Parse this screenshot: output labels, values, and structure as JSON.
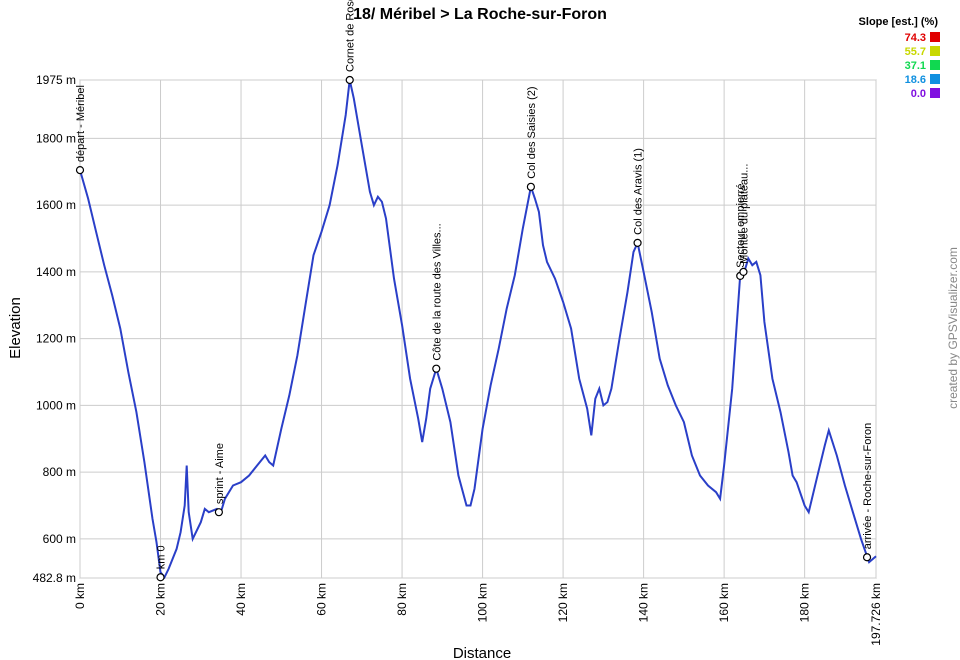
{
  "chart_data": {
    "type": "line",
    "title": "18/ Méribel > La Roche-sur-Foron",
    "xlabel": "Distance",
    "ylabel": "Elevation",
    "credit": "created by GPSVisualizer.com",
    "xlim": [
      0,
      197.726
    ],
    "ylim": [
      482.8,
      1975
    ],
    "xticks": [
      {
        "value": 0,
        "label": "0 km"
      },
      {
        "value": 20,
        "label": "20 km"
      },
      {
        "value": 40,
        "label": "40 km"
      },
      {
        "value": 60,
        "label": "60 km"
      },
      {
        "value": 80,
        "label": "80 km"
      },
      {
        "value": 100,
        "label": "100 km"
      },
      {
        "value": 120,
        "label": "120 km"
      },
      {
        "value": 140,
        "label": "140 km"
      },
      {
        "value": 160,
        "label": "160 km"
      },
      {
        "value": 180,
        "label": "180 km"
      },
      {
        "value": 197.726,
        "label": "197.726 km"
      }
    ],
    "yticks": [
      {
        "value": 482.8,
        "label": "482.8 m"
      },
      {
        "value": 600,
        "label": "600 m"
      },
      {
        "value": 800,
        "label": "800 m"
      },
      {
        "value": 1000,
        "label": "1000 m"
      },
      {
        "value": 1200,
        "label": "1200 m"
      },
      {
        "value": 1400,
        "label": "1400 m"
      },
      {
        "value": 1600,
        "label": "1600 m"
      },
      {
        "value": 1800,
        "label": "1800 m"
      },
      {
        "value": 1975,
        "label": "1975 m"
      }
    ],
    "grid": true,
    "color": "#2a3fc8",
    "x": [
      0,
      2,
      4,
      6,
      8,
      10,
      12,
      14,
      16,
      18,
      19,
      20,
      21,
      22,
      23,
      24,
      25,
      26,
      26.5,
      27,
      28,
      30,
      31,
      32,
      34,
      35,
      36,
      38,
      40,
      42,
      44,
      46,
      47,
      48,
      50,
      52,
      54,
      56,
      58,
      60,
      62,
      64,
      66,
      67,
      68,
      70,
      72,
      73,
      74,
      75,
      76,
      78,
      80,
      82,
      84,
      85,
      86,
      87,
      88.5,
      90,
      92,
      94,
      96,
      97,
      98,
      100,
      102,
      104,
      106,
      108,
      110,
      112,
      113,
      114,
      115,
      116,
      118,
      120,
      122,
      124,
      126,
      127,
      128,
      129,
      130,
      131,
      132,
      134,
      136,
      137.5,
      138.5,
      140,
      142,
      144,
      146,
      148,
      150,
      152,
      154,
      156,
      158,
      159,
      160,
      162,
      163,
      164,
      165,
      166,
      167,
      168,
      169,
      170,
      172,
      174,
      176,
      177,
      178,
      180,
      181,
      183,
      185,
      186,
      188,
      190,
      192,
      194,
      196,
      197.726
    ],
    "values": [
      1705,
      1620,
      1520,
      1420,
      1330,
      1230,
      1100,
      980,
      830,
      660,
      590,
      500,
      485,
      510,
      540,
      570,
      620,
      700,
      820,
      680,
      600,
      650,
      690,
      680,
      690,
      680,
      720,
      760,
      770,
      790,
      820,
      850,
      830,
      820,
      930,
      1030,
      1150,
      1300,
      1450,
      1520,
      1600,
      1720,
      1870,
      1975,
      1920,
      1780,
      1640,
      1600,
      1625,
      1610,
      1560,
      1380,
      1240,
      1080,
      960,
      890,
      960,
      1050,
      1110,
      1050,
      950,
      790,
      700,
      700,
      750,
      930,
      1060,
      1170,
      1290,
      1390,
      1530,
      1655,
      1620,
      1580,
      1480,
      1430,
      1380,
      1310,
      1230,
      1080,
      990,
      910,
      1020,
      1050,
      1000,
      1010,
      1050,
      1200,
      1340,
      1460,
      1487,
      1400,
      1280,
      1140,
      1060,
      1000,
      950,
      850,
      790,
      760,
      740,
      720,
      820,
      1050,
      1220,
      1390,
      1400,
      1440,
      1420,
      1430,
      1390,
      1250,
      1080,
      980,
      860,
      790,
      770,
      700,
      680,
      780,
      880,
      925,
      850,
      760,
      680,
      600,
      530,
      548
    ],
    "waypoints": [
      {
        "label": "départ - Méribel",
        "x": 0,
        "y": 1705
      },
      {
        "label": "km 0",
        "x": 20,
        "y": 485
      },
      {
        "label": "sprint - Aime",
        "x": 34.5,
        "y": 680
      },
      {
        "label": "Cornet de Roselend",
        "x": 67,
        "y": 1975
      },
      {
        "label": "Côte de la route des Villes...",
        "x": 88.5,
        "y": 1110
      },
      {
        "label": "Col des Saisies (2)",
        "x": 112,
        "y": 1655
      },
      {
        "label": "Col des Aravis (1)",
        "x": 138.5,
        "y": 1487
      },
      {
        "label": "Secteur empierré",
        "x": 164,
        "y": 1388
      },
      {
        "label": "Montée du plateau...",
        "x": 164.8,
        "y": 1400
      },
      {
        "label": "arrivée - Roche-sur-Foron",
        "x": 195.5,
        "y": 545
      }
    ],
    "slope_legend": {
      "title": "Slope [est.] (%)",
      "items": [
        {
          "value": 74.3,
          "color": "#e00000"
        },
        {
          "value": 55.7,
          "color": "#c8d800"
        },
        {
          "value": 37.1,
          "color": "#10d850"
        },
        {
          "value": 18.6,
          "color": "#1090e0"
        },
        {
          "value": 0,
          "label": "0.0",
          "color": "#8010e0"
        }
      ]
    }
  }
}
